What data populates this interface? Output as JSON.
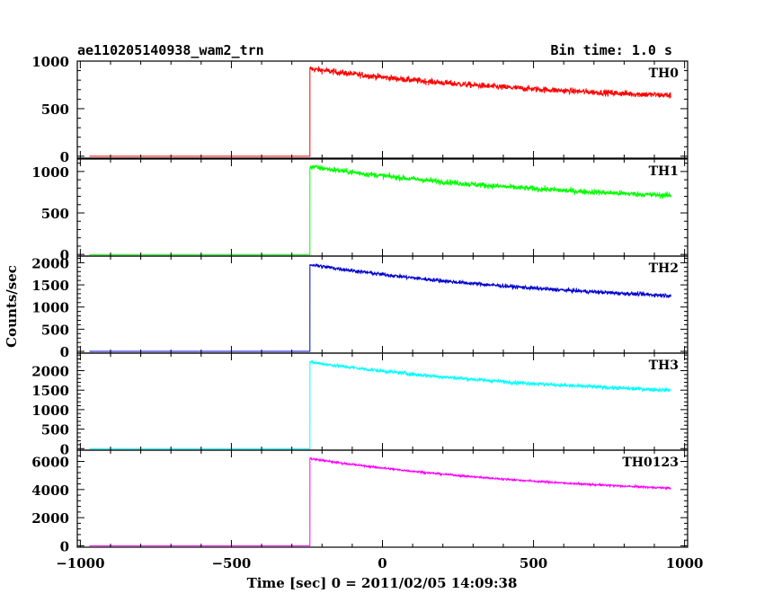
{
  "chart_data": {
    "type": "line",
    "title": "ae110205140938_wam2_trn",
    "subtitle": "Bin time: 1.0 s",
    "xlabel": "Time [sec] 0 = 2011/02/05 14:09:38",
    "ylabel": "Counts/sec",
    "xlim": [
      -1010,
      1010
    ],
    "x_ticks": [
      -1000,
      -500,
      0,
      500,
      1000
    ],
    "x_tick_labels": [
      "−1000",
      "−500",
      "0",
      "500",
      "1000"
    ],
    "trigger_time": -240,
    "data_x_range": [
      -970,
      955
    ],
    "grid": false,
    "panels": [
      {
        "name": "TH0",
        "color": "#ff0000",
        "ylim": [
          -20,
          1000
        ],
        "y_ticks": [
          0,
          500,
          1000
        ],
        "y_tick_labels": [
          "0",
          "500",
          "1000"
        ],
        "pre_level": 0,
        "peak": 920,
        "end_level": 640,
        "noise": 32
      },
      {
        "name": "TH1",
        "color": "#00ff00",
        "ylim": [
          -20,
          1150
        ],
        "y_ticks": [
          0,
          500,
          1000
        ],
        "y_tick_labels": [
          "0",
          "500",
          "1000"
        ],
        "pre_level": 0,
        "peak": 1060,
        "end_level": 710,
        "noise": 34
      },
      {
        "name": "TH2",
        "color": "#0000d0",
        "ylim": [
          -40,
          2150
        ],
        "y_ticks": [
          0,
          500,
          1000,
          1500,
          2000
        ],
        "y_tick_labels": [
          "0",
          "500",
          "1000",
          "1500",
          "2000"
        ],
        "pre_level": 0,
        "peak": 1960,
        "end_level": 1260,
        "noise": 45
      },
      {
        "name": "TH3",
        "color": "#00ffff",
        "ylim": [
          -40,
          2450
        ],
        "y_ticks": [
          0,
          500,
          1000,
          1500,
          2000
        ],
        "y_tick_labels": [
          "0",
          "500",
          "1000",
          "1500",
          "2000"
        ],
        "pre_level": 0,
        "peak": 2220,
        "end_level": 1500,
        "noise": 50
      },
      {
        "name": "TH0123",
        "color": "#ff00ff",
        "ylim": [
          -100,
          6800
        ],
        "y_ticks": [
          0,
          2000,
          4000,
          6000
        ],
        "y_tick_labels": [
          "0",
          "2000",
          "4000",
          "6000"
        ],
        "pre_level": 0,
        "peak": 6200,
        "end_level": 4100,
        "noise": 70
      }
    ]
  }
}
